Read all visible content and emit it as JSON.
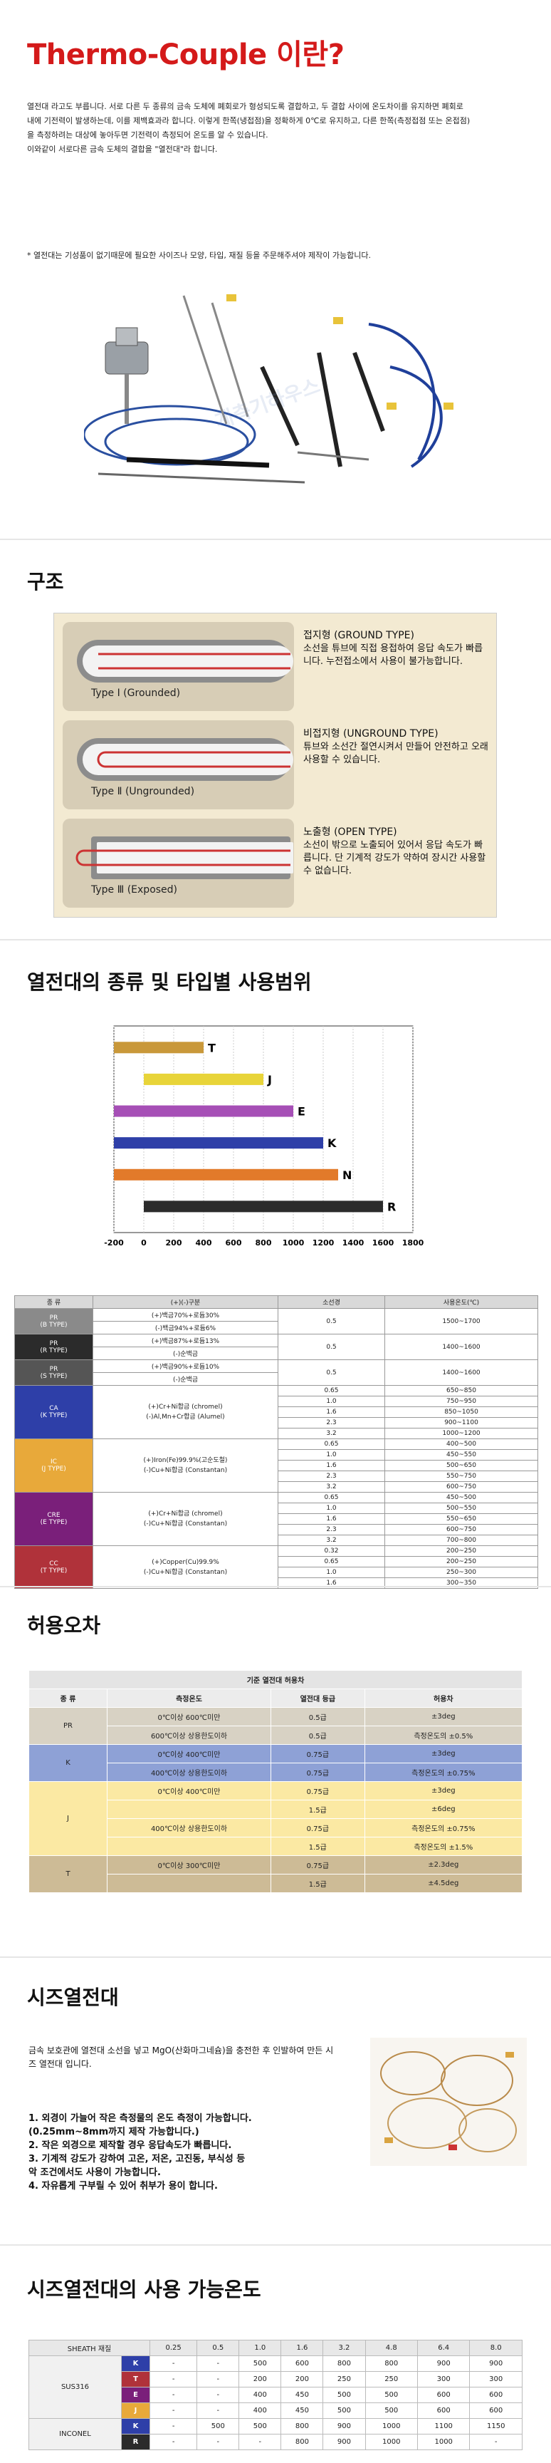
{
  "title": "Thermo-Couple 이란?",
  "intro": [
    "열전대 라고도 부릅니다. 서로 다른 두 종류의 금속 도체에 폐회로가 형성되도록 결합하고, 두 결합 사이에 온도차이를 유지하면 폐회로",
    "내에 기전력이 발생하는데, 이를 제백효과라 합니다. 이렇게 한쪽(냉접점)을 정확하게 0℃로 유지하고, 다른 한쪽(측정접점 또는 온접점)",
    "을 측정하려는 대상에 놓아두면 기전력이 측정되어 온도를 알 수 있습니다.",
    "이와같이 서로다른 금속 도체의 결합을 \"열전대\"라 합니다."
  ],
  "note": "* 열전대는 기성품이 없기때문에 필요한 사이즈나 모양, 타입, 재질 등을 주문해주셔야 제작이 가능합니다.",
  "watermark": "계측기하우스",
  "section_structure": "구조",
  "types": [
    {
      "label": "Type  Ⅰ (Grounded)",
      "name": "접지형 (GROUND TYPE)",
      "desc": "소선을 튜브에 직접 용접하여 응답 속도가 빠릅니다. 누전접소에서 사용이 불가능합니다."
    },
    {
      "label": "Type  Ⅱ (Ungrounded)",
      "name": "비접지형 (UNGROUND TYPE)",
      "desc": "튜브와 소선간 절연시켜서 만들어 안전하고 오래 사용할 수 있습니다."
    },
    {
      "label": "Type  Ⅲ (Exposed)",
      "name": "노출형 (OPEN TYPE)",
      "desc": "소선이 밖으로 노출되어 있어서 응답 속도가 빠릅니다. 단 기계적 강도가 약하여 장시간 사용할 수 없습니다."
    }
  ],
  "section_range": "열전대의 종류 및 타입별 사용범위",
  "chart_data": {
    "type": "bar",
    "categories": [
      "T",
      "J",
      "E",
      "K",
      "N",
      "R"
    ],
    "ranges": [
      [
        -200,
        400
      ],
      [
        0,
        800
      ],
      [
        -200,
        1000
      ],
      [
        -200,
        1200
      ],
      [
        -200,
        1300
      ],
      [
        0,
        1600
      ]
    ],
    "colors": [
      "#c9983a",
      "#e8d439",
      "#a64fb6",
      "#2e3fa8",
      "#e27a2a",
      "#2b2b2b"
    ],
    "xticks": [
      "-200",
      "0",
      "200",
      "400",
      "600",
      "800",
      "1000",
      "1200",
      "1400",
      "1600",
      "1800"
    ],
    "xlim": [
      -200,
      1800
    ]
  },
  "table1": {
    "headers": [
      "종  류",
      "(+)(-)구분",
      "소선경",
      "사용온도(℃)"
    ],
    "rows": [
      {
        "type": "PR\n(B TYPE)",
        "color": "#8a8a8a",
        "parts": [
          "(+)백금70%+로듐30%",
          "(-)백금94%+로듐6%"
        ],
        "dia": [
          "0.5"
        ],
        "temp": [
          "1500~1700"
        ]
      },
      {
        "type": "PR\n(R TYPE)",
        "color": "#2b2b2b",
        "parts": [
          "(+)백금87%+로듐13%",
          "(-)순백금"
        ],
        "dia": [
          "0.5"
        ],
        "temp": [
          "1400~1600"
        ]
      },
      {
        "type": "PR\n(S TYPE)",
        "color": "#555555",
        "parts": [
          "(+)백금90%+로듐10%",
          "(-)순백금"
        ],
        "dia": [
          "0.5"
        ],
        "temp": [
          "1400~1600"
        ]
      },
      {
        "type": "CA\n(K TYPE)",
        "color": "#2e3fa8",
        "parts": [
          "(+)Cr+Ni합금 (chromel)",
          "(-)Al,Mn+Cr합금 (Alumel)"
        ],
        "dia": [
          "0.65",
          "1.0",
          "1.6",
          "2.3",
          "3.2"
        ],
        "temp": [
          "650~850",
          "750~950",
          "850~1050",
          "900~1100",
          "1000~1200"
        ]
      },
      {
        "type": "IC\n(J TYPE)",
        "color": "#e8a93a",
        "parts": [
          "(+)Iron(Fe)99.9%(고순도철)",
          "(-)Cu+Ni합금 (Constantan)"
        ],
        "dia": [
          "0.65",
          "1.0",
          "1.6",
          "2.3",
          "3.2"
        ],
        "temp": [
          "400~500",
          "450~550",
          "500~650",
          "550~750",
          "600~750"
        ]
      },
      {
        "type": "CRE\n(E TYPE)",
        "color": "#7a1f7a",
        "parts": [
          "(+)Cr+Ni합금 (chromel)",
          "(-)Cu+Ni합금 (Constantan)"
        ],
        "dia": [
          "0.65",
          "1.0",
          "1.6",
          "2.3",
          "3.2"
        ],
        "temp": [
          "450~500",
          "500~550",
          "550~650",
          "600~750",
          "700~800"
        ]
      },
      {
        "type": "CC\n(T TYPE)",
        "color": "#b0323a",
        "parts": [
          "(+)Copper(Cu)99.9%",
          "(-)Cu+Ni합금 (Constantan)"
        ],
        "dia": [
          "0.32",
          "0.65",
          "1.0",
          "1.6"
        ],
        "temp": [
          "200~250",
          "200~250",
          "250~300",
          "300~350"
        ]
      }
    ]
  },
  "section_tolerance": "허용오차",
  "table2": {
    "caption": "기준 열전대 허용차",
    "headers": [
      "종  류",
      "측정온도",
      "열전대 등급",
      "허용차"
    ],
    "groups": [
      {
        "type": "PR",
        "bg": "#d8d2c4",
        "rows": [
          [
            "0℃이상 600℃미만",
            "0.5급",
            "±3deg"
          ],
          [
            "600℃이상 상용한도이하",
            "0.5급",
            "측정온도의 ±0.5%"
          ]
        ]
      },
      {
        "type": "K",
        "bg": "#8ea1d6",
        "rows": [
          [
            "0℃이상 400℃미만",
            "0.75급",
            "±3deg"
          ],
          [
            "400℃이상 상용한도이하",
            "0.75급",
            "측정온도의 ±0.75%"
          ]
        ]
      },
      {
        "type": "J",
        "bg": "#fbe9a3",
        "rows": [
          [
            "0℃이상 400℃미만",
            "0.75급",
            "±3deg"
          ],
          [
            "",
            "1.5급",
            "±6deg"
          ],
          [
            "400℃이상 상용한도이하",
            "0.75급",
            "측정온도의 ±0.75%"
          ],
          [
            "",
            "1.5급",
            "측정온도의 ±1.5%"
          ]
        ]
      },
      {
        "type": "T",
        "bg": "#cdbb96",
        "rows": [
          [
            "0℃이상 300℃미만",
            "0.75급",
            "±2.3deg"
          ],
          [
            "",
            "1.5급",
            "±4.5deg"
          ]
        ]
      }
    ]
  },
  "section_sheath": "시즈열전대",
  "sheath_text": "금속 보호관에 열전대 소선을 넣고 MgO(산화마그네슘)을 충전한 후 인발하여 만든 시즈 열전대 입니다.",
  "sheath_list": [
    "1. 외경이 가늘어 작은 측정물의 온도 측정이 가능합니다.",
    "(0.25mm~8mm까지 제작 가능합니다.)",
    "2. 작은 외경으로 제작할 경우 응답속도가 빠릅니다.",
    "3. 기계적 강도가 강하여 고온, 저온, 고진동, 부식성 등",
    "악 조건에서도 사용이 가능합니다.",
    "4. 자유롭게 구부릴 수 있어 취부가 용이 합니다."
  ],
  "section_sheath_temp": "시즈열전대의 사용 가능온도",
  "table3": {
    "header_label": "SHEATH 재질",
    "cols": [
      "0.25",
      "0.5",
      "1.0",
      "1.6",
      "3.2",
      "4.8",
      "6.4",
      "8.0"
    ],
    "groups": [
      {
        "material": "SUS316",
        "rows": [
          {
            "t": "K",
            "color": "#2e3fa8",
            "v": [
              "-",
              "-",
              "500",
              "600",
              "800",
              "800",
              "900",
              "900"
            ]
          },
          {
            "t": "T",
            "color": "#b0323a",
            "v": [
              "-",
              "-",
              "200",
              "200",
              "250",
              "250",
              "300",
              "300"
            ]
          },
          {
            "t": "E",
            "color": "#7a1f7a",
            "v": [
              "-",
              "-",
              "400",
              "450",
              "500",
              "500",
              "600",
              "600"
            ]
          },
          {
            "t": "J",
            "color": "#e8a93a",
            "v": [
              "-",
              "-",
              "400",
              "450",
              "500",
              "500",
              "600",
              "600"
            ]
          }
        ]
      },
      {
        "material": "INCONEL",
        "rows": [
          {
            "t": "K",
            "color": "#2e3fa8",
            "v": [
              "-",
              "500",
              "500",
              "800",
              "900",
              "1000",
              "1100",
              "1150"
            ]
          },
          {
            "t": "R",
            "color": "#2b2b2b",
            "v": [
              "-",
              "-",
              "-",
              "800",
              "900",
              "1000",
              "1000",
              "-"
            ]
          }
        ]
      }
    ]
  }
}
